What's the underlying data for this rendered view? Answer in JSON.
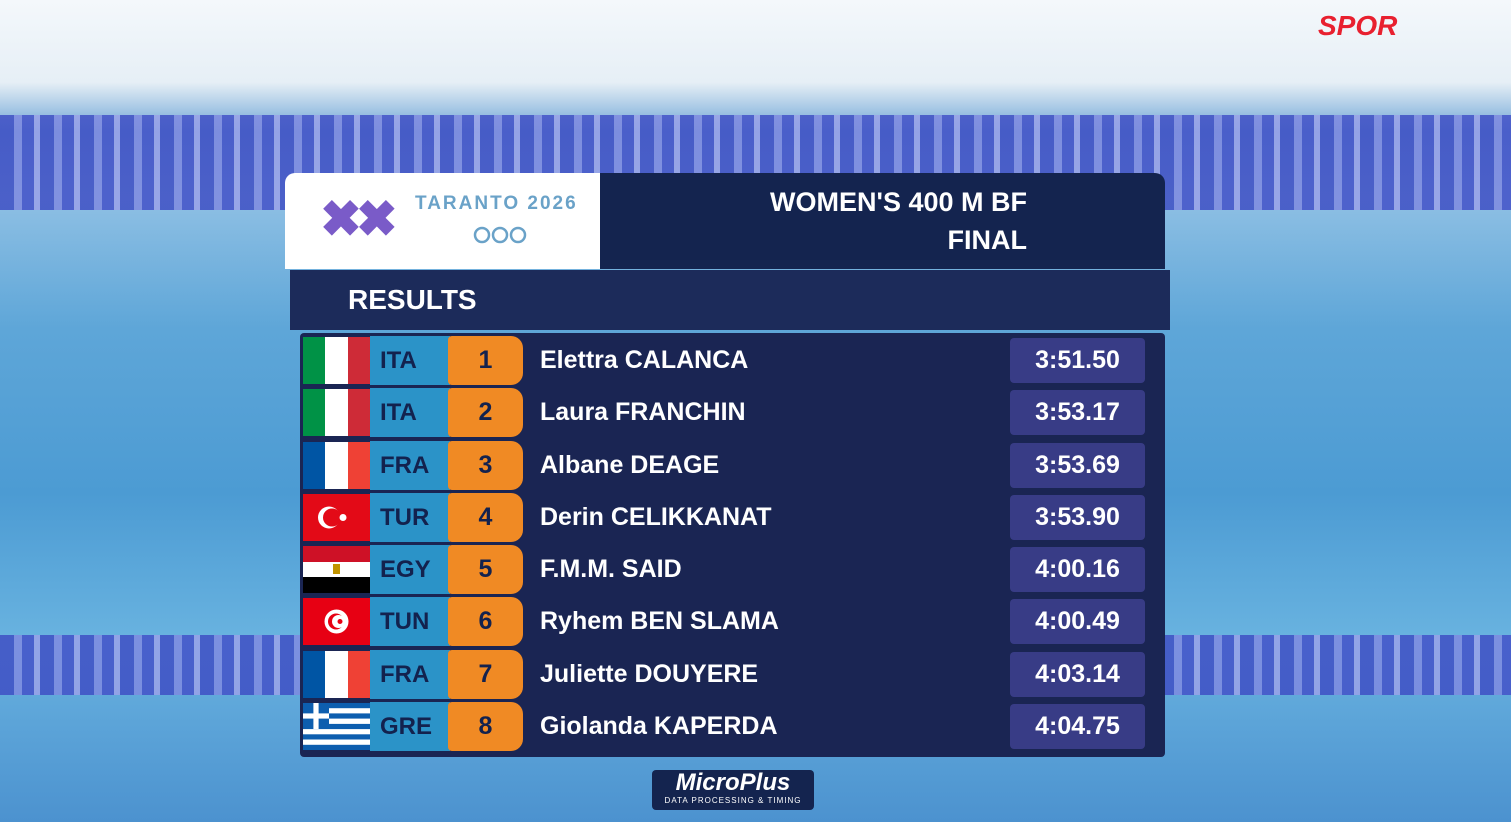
{
  "broadcaster": "SPOR",
  "event": {
    "games": "TARANTO 2026",
    "title": "WOMEN'S 400 M BF",
    "phase": "FINAL"
  },
  "table": {
    "heading": "RESULTS",
    "rows": [
      {
        "country": "ITA",
        "rank": 1,
        "name": "Elettra CALANCA",
        "time": "3:51.50"
      },
      {
        "country": "ITA",
        "rank": 2,
        "name": "Laura FRANCHIN",
        "time": "3:53.17"
      },
      {
        "country": "FRA",
        "rank": 3,
        "name": "Albane DEAGE",
        "time": "3:53.69"
      },
      {
        "country": "TUR",
        "rank": 4,
        "name": "Derin CELIKKANAT",
        "time": "3:53.90"
      },
      {
        "country": "EGY",
        "rank": 5,
        "name": "F.M.M. SAID",
        "time": "4:00.16"
      },
      {
        "country": "TUN",
        "rank": 6,
        "name": "Ryhem BEN SLAMA",
        "time": "4:00.49"
      },
      {
        "country": "FRA",
        "rank": 7,
        "name": "Juliette DOUYERE",
        "time": "4:03.14"
      },
      {
        "country": "GRE",
        "rank": 8,
        "name": "Giolanda KAPERDA",
        "time": "4:04.75"
      }
    ]
  },
  "footer": {
    "brand": "MicroPlus",
    "tagline": "DATA PROCESSING & TIMING"
  }
}
